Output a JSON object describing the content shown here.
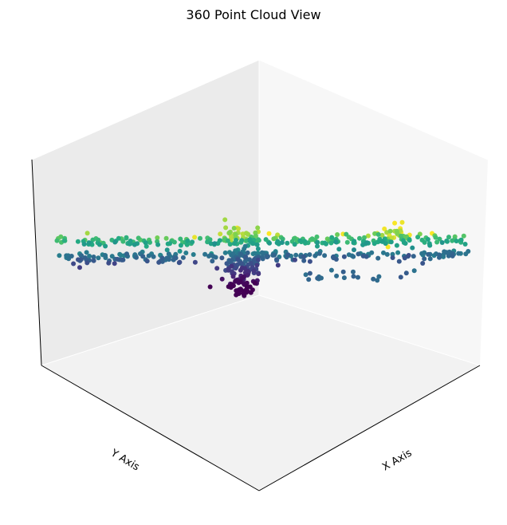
{
  "chart_data": {
    "type": "scatter",
    "projection": "3d",
    "title": "360 Point Cloud View",
    "xlabel": "X Axis",
    "ylabel": "Y Axis",
    "zlabel": "",
    "colormap": "viridis",
    "ticks_visible": false,
    "grid": false,
    "pane_colors": {
      "left": "#ebebeb",
      "right": "#f7f7f7",
      "floor": "#f2f2f2"
    },
    "description": "Point cloud forming a horizontal band with a dense vertical cluster at the center; colour encodes height (purple = low, yellow = high)."
  }
}
